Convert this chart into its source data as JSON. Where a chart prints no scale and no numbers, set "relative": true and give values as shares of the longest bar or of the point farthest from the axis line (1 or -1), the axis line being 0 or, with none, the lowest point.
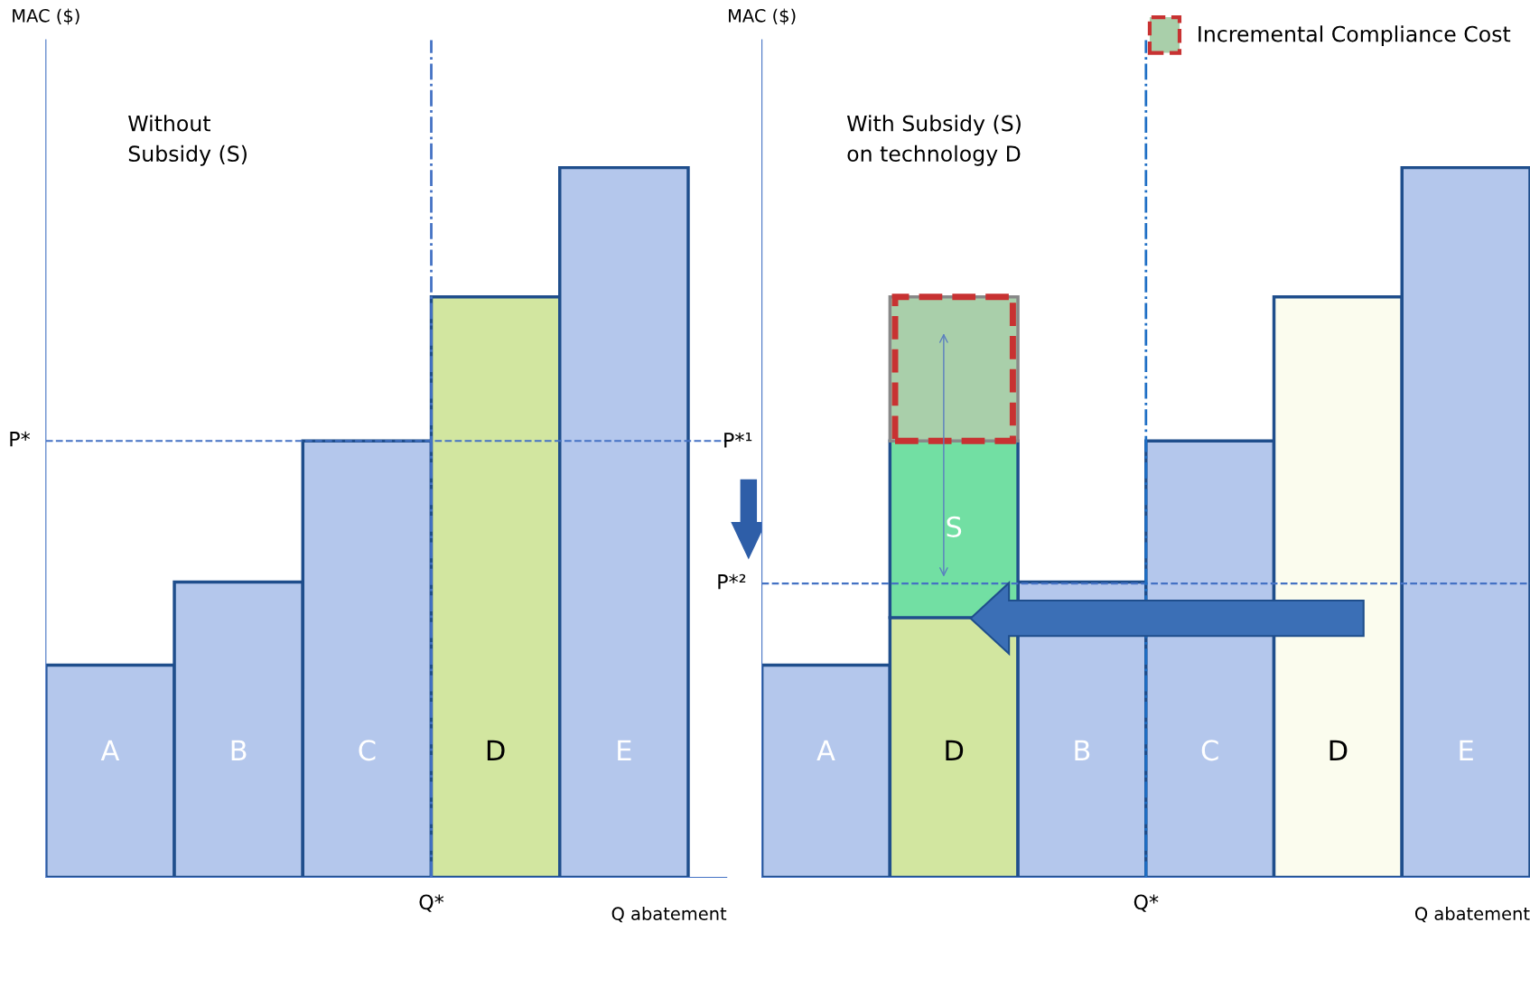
{
  "chart_data": [
    {
      "type": "bar",
      "relative": true,
      "title": "Without\nSubsidy (S)",
      "ylabel": "MAC ($)",
      "xlabel": "Q abatement",
      "categories": [
        "A",
        "B",
        "C",
        "D",
        "E"
      ],
      "series": [
        {
          "colors": [
            "#b4c7ec",
            "#b4c7ec",
            "#b4c7ec",
            "#d2e6a0",
            "#b4c7ec"
          ],
          "values": [
            0.299,
            0.416,
            0.615,
            0.818,
            1
          ]
        }
      ],
      "ref_lines": [
        {
          "axis": "y",
          "value": 0.615,
          "label": "P*",
          "line_style": "dashed",
          "color": "#4472c4"
        },
        {
          "axis": "x",
          "value": "D",
          "label": "Q*",
          "line_style": "dashdot",
          "color": "#4472c4"
        }
      ],
      "legend": false,
      "tick_labels": "x"
    },
    {
      "type": "bar",
      "relative": true,
      "stacked": true,
      "title": "With Subsidy (S)\non technology D",
      "ylabel": "MAC ($)",
      "xlabel": "Q abatement",
      "categories": [
        "A",
        "D",
        "B",
        "C",
        "D",
        "E"
      ],
      "series": [
        {
          "colors": [
            "#b4c7ec",
            "#d2e6a0",
            "#b4c7ec",
            "#b4c7ec",
            "#fbfcee",
            "#b4c7ec"
          ],
          "values": [
            0.299,
            0.366,
            0.416,
            0.615,
            0.818,
            1
          ]
        },
        {
          "name": "S",
          "color": "#72dfa3",
          "values": [
            null,
            0.249,
            null,
            null,
            null,
            null
          ]
        },
        {
          "name": "Incremental Compliance Cost",
          "color": "#a9cfaa",
          "line_style": "dashed",
          "values": [
            null,
            0.203,
            null,
            null,
            null,
            null
          ]
        }
      ],
      "ref_lines": [
        {
          "axis": "y",
          "value": 0.414,
          "label": "P*²",
          "line_style": "dashed",
          "color": "#4472c4"
        },
        {
          "axis": "x",
          "value": "C",
          "label": "Q*",
          "line_style": "dashdot",
          "color": "#1f6fc5"
        }
      ],
      "annotations": [
        "P*¹"
      ],
      "legend": "top right",
      "tick_labels": "x"
    }
  ]
}
